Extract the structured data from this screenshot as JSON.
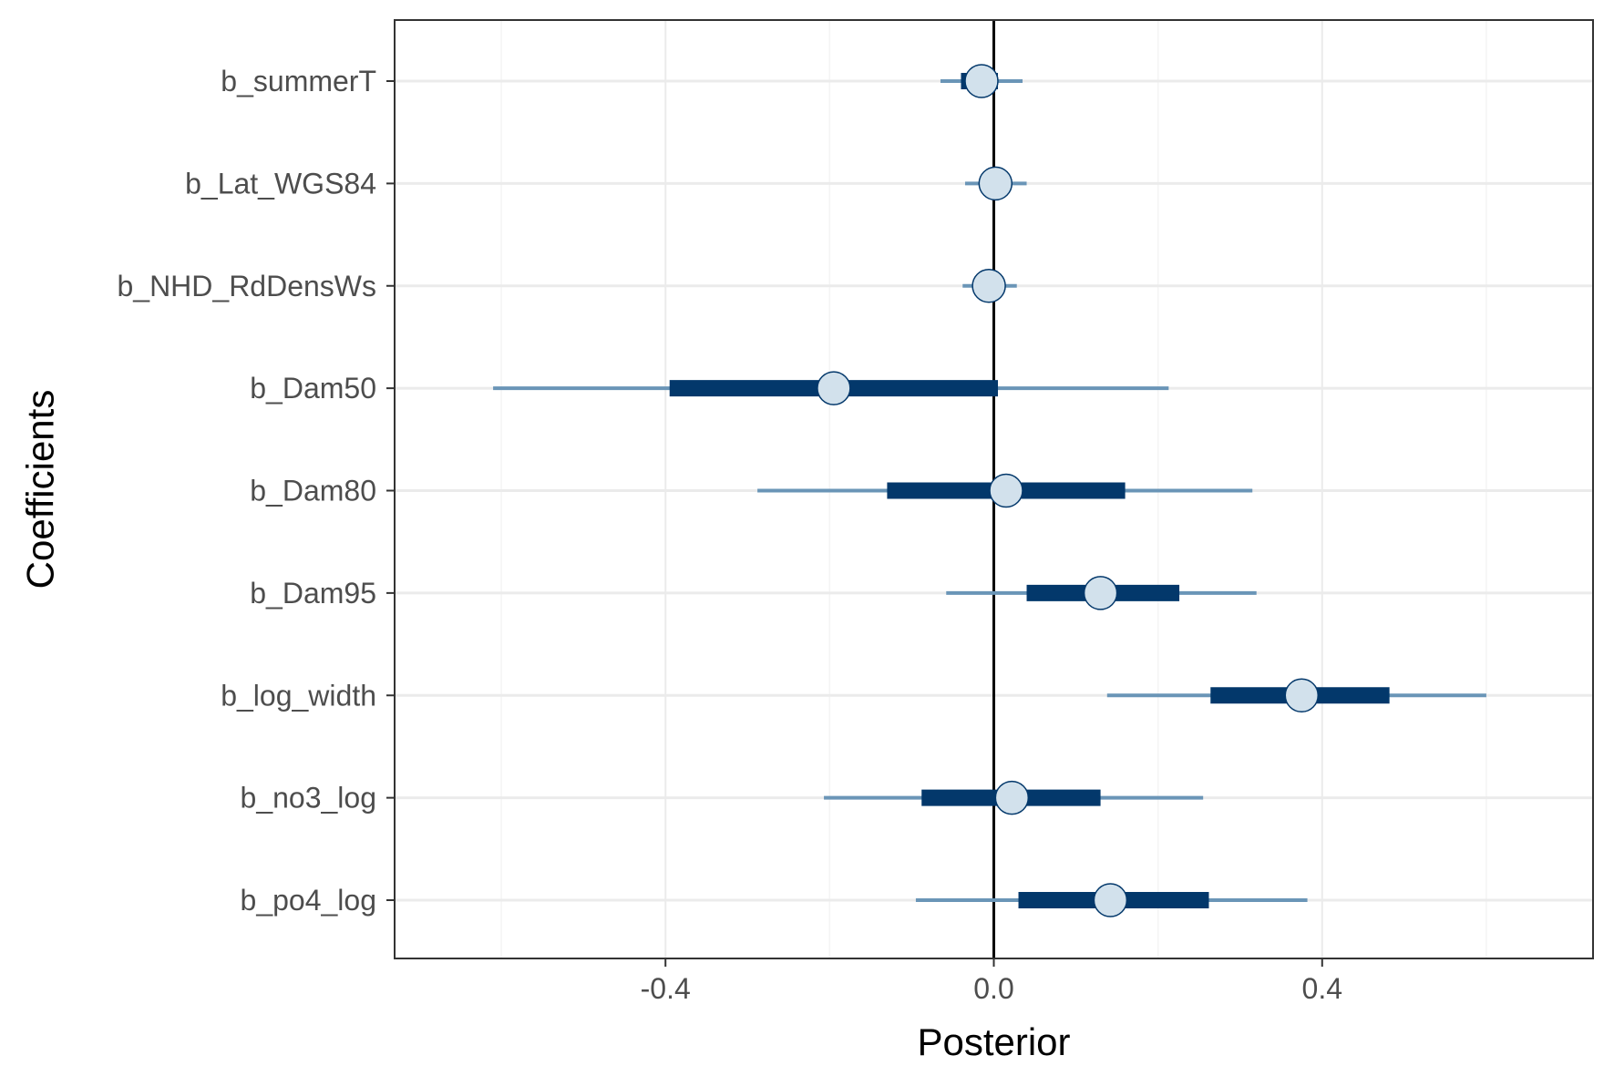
{
  "chart_data": {
    "type": "interval",
    "title": "",
    "xlabel": "Posterior",
    "ylabel": "Coefficients",
    "xlim": [
      -0.73,
      0.73
    ],
    "x_ticks": [
      -0.4,
      0.0,
      0.4
    ],
    "x_tick_labels": [
      "-0.4",
      "0.0",
      "0.4"
    ],
    "reference_line_x": 0.0,
    "grid": true,
    "legend": "none",
    "coefficients": [
      {
        "name": "b_summerT",
        "median": -0.015,
        "inner": [
          -0.04,
          0.005
        ],
        "outer": [
          -0.065,
          0.035
        ]
      },
      {
        "name": "b_Lat_WGS84",
        "median": 0.002,
        "inner": [
          -0.012,
          0.014
        ],
        "outer": [
          -0.035,
          0.04
        ]
      },
      {
        "name": "b_NHD_RdDensWs",
        "median": -0.006,
        "inner": [
          -0.015,
          0.008
        ],
        "outer": [
          -0.038,
          0.028
        ]
      },
      {
        "name": "b_Dam50",
        "median": -0.195,
        "inner": [
          -0.395,
          0.005
        ],
        "outer": [
          -0.61,
          0.213
        ]
      },
      {
        "name": "b_Dam80",
        "median": 0.015,
        "inner": [
          -0.13,
          0.16
        ],
        "outer": [
          -0.288,
          0.315
        ]
      },
      {
        "name": "b_Dam95",
        "median": 0.13,
        "inner": [
          0.04,
          0.226
        ],
        "outer": [
          -0.058,
          0.32
        ]
      },
      {
        "name": "b_log_width",
        "median": 0.375,
        "inner": [
          0.264,
          0.482
        ],
        "outer": [
          0.138,
          0.6
        ]
      },
      {
        "name": "b_no3_log",
        "median": 0.022,
        "inner": [
          -0.088,
          0.13
        ],
        "outer": [
          -0.207,
          0.255
        ]
      },
      {
        "name": "b_po4_log",
        "median": 0.142,
        "inner": [
          0.03,
          0.262
        ],
        "outer": [
          -0.095,
          0.382
        ]
      }
    ],
    "colors": {
      "outer_interval": "#6a95b7",
      "inner_interval": "#03386b",
      "point_fill": "#d2e1ec",
      "point_stroke": "#03386b",
      "reference_line": "#000000",
      "grid_major": "#ebebeb",
      "grid_minor": "#f4f4f4",
      "panel_border": "#333333"
    }
  }
}
